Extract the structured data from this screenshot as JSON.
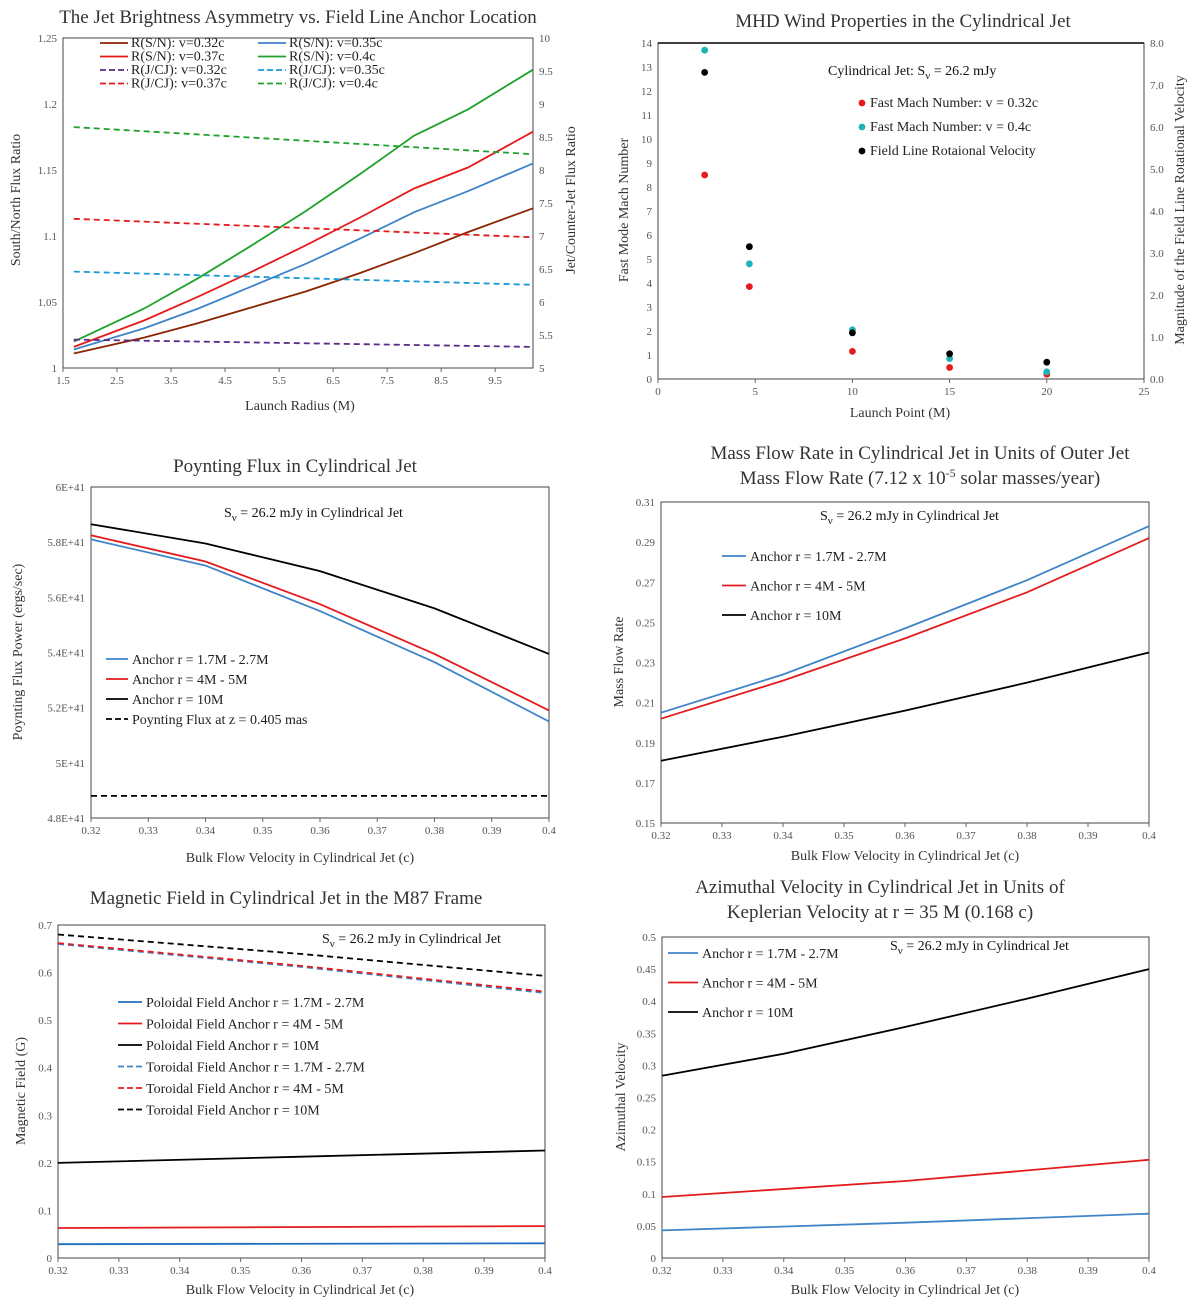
{
  "chart_data": [
    {
      "id": "jet_asymmetry",
      "type": "line",
      "title": "The Jet Brightness Asymmetry vs. Field Line Anchor Location",
      "xlabel": "Launch Radius (M)",
      "ylabel": "South/North Flux Ratio",
      "y2label": "Jet/Counter-Jet Flux Ratio",
      "xlim": [
        1.5,
        10.2
      ],
      "ylim": [
        1,
        1.25
      ],
      "y2lim": [
        5,
        10
      ],
      "xticks": [
        "1.5",
        "2.5",
        "3.5",
        "4.5",
        "5.5",
        "6.5",
        "7.5",
        "8.5",
        "9.5"
      ],
      "yticks": [
        "1",
        "1.05",
        "1.1",
        "1.15",
        "1.2",
        "1.25"
      ],
      "y2ticks": [
        "5",
        "5.5",
        "6",
        "6.5",
        "7",
        "7.5",
        "8",
        "8.5",
        "9",
        "9.5",
        "10"
      ],
      "series": [
        {
          "name": "R(S/N): v=0.32c",
          "color": "#8b2500",
          "dash": false,
          "axis": "y",
          "x": [
            1.7,
            3,
            4,
            5,
            6,
            7,
            8,
            9,
            10.2
          ],
          "y": [
            1.011,
            1.023,
            1.034,
            1.046,
            1.058,
            1.072,
            1.087,
            1.103,
            1.121
          ]
        },
        {
          "name": "R(S/N): v=0.35c",
          "color": "#3f84c8",
          "dash": false,
          "axis": "y",
          "x": [
            1.7,
            3,
            4,
            5,
            6,
            7,
            8,
            9,
            10.2
          ],
          "y": [
            1.014,
            1.03,
            1.045,
            1.062,
            1.079,
            1.098,
            1.118,
            1.134,
            1.155
          ]
        },
        {
          "name": "R(S/N): v=0.37c",
          "color": "#e41a1c",
          "dash": false,
          "axis": "y",
          "x": [
            1.7,
            3,
            4,
            5,
            6,
            7,
            8,
            9,
            10.2
          ],
          "y": [
            1.016,
            1.036,
            1.054,
            1.073,
            1.093,
            1.114,
            1.136,
            1.152,
            1.179
          ]
        },
        {
          "name": "R(S/N): v=0.4c",
          "color": "#1fa22b",
          "dash": false,
          "axis": "y",
          "x": [
            1.7,
            3,
            4,
            5,
            6,
            7,
            8,
            9,
            10.2
          ],
          "y": [
            1.02,
            1.045,
            1.068,
            1.093,
            1.119,
            1.147,
            1.176,
            1.196,
            1.226
          ]
        },
        {
          "name": "R(J/CJ): v=0.32c",
          "color": "#5b2a86",
          "dash": true,
          "axis": "y2",
          "x": [
            1.7,
            10.2
          ],
          "y": [
            5.43,
            5.32
          ]
        },
        {
          "name": "R(J/CJ): v=0.35c",
          "color": "#1b9ad6",
          "dash": true,
          "axis": "y2",
          "x": [
            1.7,
            10.2
          ],
          "y": [
            6.46,
            6.26
          ]
        },
        {
          "name": "R(J/CJ): v=0.37c",
          "color": "#e41a1c",
          "dash": true,
          "axis": "y2",
          "x": [
            1.7,
            10.2
          ],
          "y": [
            7.26,
            6.98
          ]
        },
        {
          "name": "R(J/CJ): v=0.4c",
          "color": "#1fa22b",
          "dash": true,
          "axis": "y2",
          "x": [
            1.7,
            10.2
          ],
          "y": [
            8.65,
            8.24
          ]
        }
      ]
    },
    {
      "id": "mhd_wind",
      "type": "scatter",
      "title": "MHD Wind Properties in the Cylindrical Jet",
      "xlabel": "Launch Point (M)",
      "ylabel": "Fast Mode Mach Number",
      "y2label": "Magnitude of the Field Line Rotational Velocity",
      "annotation_prefix": "Cylindrical Jet: S",
      "annotation_sub": "ν",
      "annotation_suffix": " = 26.2 mJy",
      "xlim": [
        0,
        25
      ],
      "ylim": [
        0,
        14
      ],
      "y2lim": [
        0,
        8
      ],
      "xticks": [
        "0",
        "5",
        "10",
        "15",
        "20",
        "25"
      ],
      "yticks": [
        "0",
        "1",
        "2",
        "3",
        "4",
        "5",
        "6",
        "7",
        "8",
        "9",
        "10",
        "11",
        "12",
        "13",
        "14"
      ],
      "y2ticks": [
        "0.0",
        "1.0",
        "2.0",
        "3.0",
        "4.0",
        "5.0",
        "6.0",
        "7.0",
        "8.0"
      ],
      "series": [
        {
          "name": "Fast Mach Number: v = 0.32c",
          "color": "#e41a1c",
          "axis": "y",
          "x": [
            2.4,
            4.7,
            10,
            15,
            20
          ],
          "y": [
            8.5,
            3.85,
            1.15,
            0.48,
            0.2
          ]
        },
        {
          "name": "Fast Mach Number: v = 0.4c",
          "color": "#1fb3b3",
          "axis": "y",
          "x": [
            2.4,
            4.7,
            10,
            15,
            20
          ],
          "y": [
            13.7,
            4.8,
            2.05,
            0.85,
            0.3
          ]
        },
        {
          "name": "Field Line Rotaional Velocity",
          "color": "#000000",
          "axis": "y2",
          "x": [
            2.4,
            4.7,
            10,
            15,
            20
          ],
          "y": [
            7.3,
            3.15,
            1.1,
            0.6,
            0.4
          ]
        }
      ]
    },
    {
      "id": "poynting",
      "type": "line",
      "title": "Poynting Flux in Cylindrical Jet",
      "xlabel": "Bulk Flow Velocity in Cylindrical Jet (c)",
      "ylabel": "Poynting Flux Power (ergs/sec)",
      "annotation_prefix": "S",
      "annotation_sub": "ν",
      "annotation_suffix": " = 26.2 mJy in Cylindrical Jet",
      "xlim": [
        0.32,
        0.4
      ],
      "ylim": [
        4.8,
        6.0
      ],
      "xticks": [
        "0.32",
        "0.33",
        "0.34",
        "0.35",
        "0.36",
        "0.37",
        "0.38",
        "0.39",
        "0.4"
      ],
      "yticks": [
        "4.8E+41",
        "5E+41",
        "5.2E+41",
        "5.4E+41",
        "5.6E+41",
        "5.8E+41",
        "6E+41"
      ],
      "series": [
        {
          "name": "Anchor r = 1.7M - 2.7M",
          "color": "#3f84c8",
          "dash": false,
          "x": [
            0.32,
            0.34,
            0.36,
            0.38,
            0.4
          ],
          "y": [
            5.81,
            5.715,
            5.55,
            5.365,
            5.15
          ]
        },
        {
          "name": "Anchor r = 4M - 5M",
          "color": "#e41a1c",
          "dash": false,
          "x": [
            0.32,
            0.34,
            0.36,
            0.38,
            0.4
          ],
          "y": [
            5.825,
            5.73,
            5.575,
            5.395,
            5.19
          ]
        },
        {
          "name": "Anchor r = 10M",
          "color": "#000000",
          "dash": false,
          "x": [
            0.32,
            0.34,
            0.36,
            0.38,
            0.4
          ],
          "y": [
            5.865,
            5.795,
            5.695,
            5.56,
            5.395
          ]
        },
        {
          "name": "Poynting Flux at z = 0.405 mas",
          "color": "#000000",
          "dash": true,
          "x": [
            0.32,
            0.4
          ],
          "y": [
            4.88,
            4.88
          ]
        }
      ]
    },
    {
      "id": "mass_flow",
      "type": "line",
      "title_line1": "Mass Flow Rate in Cylindrical Jet in Units of Outer Jet",
      "title_line2_prefix": "Mass Flow Rate (7.12 x 10",
      "title_line2_sup": "-5",
      "title_line2_suffix": " solar masses/year)",
      "xlabel": "Bulk Flow Velocity in Cylindrical Jet (c)",
      "ylabel": "Mass Flow Rate",
      "annotation_prefix": "S",
      "annotation_sub": "ν",
      "annotation_suffix": " = 26.2 mJy in Cylindrical Jet",
      "xlim": [
        0.32,
        0.4
      ],
      "ylim": [
        0.15,
        0.31
      ],
      "xticks": [
        "0.32",
        "0.33",
        "0.34",
        "0.35",
        "0.36",
        "0.37",
        "0.38",
        "0.39",
        "0.4"
      ],
      "yticks": [
        "0.15",
        "0.17",
        "0.19",
        "0.21",
        "0.23",
        "0.25",
        "0.27",
        "0.29",
        "0.31"
      ],
      "series": [
        {
          "name": "Anchor r = 1.7M - 2.7M",
          "color": "#3f84c8",
          "dash": false,
          "x": [
            0.32,
            0.34,
            0.36,
            0.38,
            0.4
          ],
          "y": [
            0.205,
            0.224,
            0.247,
            0.271,
            0.298
          ]
        },
        {
          "name": "Anchor r = 4M - 5M",
          "color": "#e41a1c",
          "dash": false,
          "x": [
            0.32,
            0.34,
            0.36,
            0.38,
            0.4
          ],
          "y": [
            0.202,
            0.221,
            0.242,
            0.265,
            0.292
          ]
        },
        {
          "name": "Anchor r = 10M",
          "color": "#000000",
          "dash": false,
          "x": [
            0.32,
            0.34,
            0.36,
            0.38,
            0.4
          ],
          "y": [
            0.181,
            0.193,
            0.206,
            0.22,
            0.235
          ]
        }
      ]
    },
    {
      "id": "magnetic_field",
      "type": "line",
      "title": "Magnetic Field in Cylindrical Jet in the M87 Frame",
      "xlabel": "Bulk Flow Velocity in Cylindrical Jet (c)",
      "ylabel": "Magnetic Field (G)",
      "annotation_prefix": "S",
      "annotation_sub": "ν",
      "annotation_suffix": " = 26.2 mJy in Cylindrical Jet",
      "xlim": [
        0.32,
        0.4
      ],
      "ylim": [
        0,
        0.7
      ],
      "xticks": [
        "0.32",
        "0.33",
        "0.34",
        "0.35",
        "0.36",
        "0.37",
        "0.38",
        "0.39",
        "0.4"
      ],
      "yticks": [
        "0",
        "0.1",
        "0.2",
        "0.3",
        "0.4",
        "0.5",
        "0.6",
        "0.7"
      ],
      "series": [
        {
          "name": "Poloidal Field Anchor r = 1.7M - 2.7M",
          "color": "#1f6fc0",
          "dash": false,
          "x": [
            0.32,
            0.4
          ],
          "y": [
            0.029,
            0.031
          ]
        },
        {
          "name": "Poloidal Field Anchor r = 4M - 5M",
          "color": "#e41a1c",
          "dash": false,
          "x": [
            0.32,
            0.4
          ],
          "y": [
            0.063,
            0.067
          ]
        },
        {
          "name": "Poloidal Field Anchor r = 10M",
          "color": "#000000",
          "dash": false,
          "x": [
            0.32,
            0.36,
            0.4
          ],
          "y": [
            0.2,
            0.213,
            0.226
          ]
        },
        {
          "name": "Toroidal Field Anchor r = 1.7M - 2.7M",
          "color": "#3f84c8",
          "dash": true,
          "x": [
            0.32,
            0.36,
            0.4
          ],
          "y": [
            0.66,
            0.612,
            0.557
          ]
        },
        {
          "name": "Toroidal Field Anchor r = 4M - 5M",
          "color": "#e41a1c",
          "dash": true,
          "x": [
            0.32,
            0.36,
            0.4
          ],
          "y": [
            0.662,
            0.614,
            0.56
          ]
        },
        {
          "name": "Toroidal Field Anchor r = 10M",
          "color": "#000000",
          "dash": true,
          "x": [
            0.32,
            0.36,
            0.4
          ],
          "y": [
            0.68,
            0.639,
            0.593
          ]
        }
      ]
    },
    {
      "id": "azimuthal_velocity",
      "type": "line",
      "title_line1": "Azimuthal Velocity in Cylindrical Jet in Units of",
      "title_line2": "Keplerian Velocity at r = 35 M (0.168 c)",
      "xlabel": "Bulk Flow Velocity in Cylindrical Jet (c)",
      "ylabel": "Azimuthal Velocity",
      "annotation_prefix": "S",
      "annotation_sub": "ν",
      "annotation_suffix": " = 26.2 mJy in Cylindrical Jet",
      "xlim": [
        0.32,
        0.4
      ],
      "ylim": [
        0,
        0.5
      ],
      "xticks": [
        "0.32",
        "0.33",
        "0.34",
        "0.35",
        "0.36",
        "0.37",
        "0.38",
        "0.39",
        "0.4"
      ],
      "yticks": [
        "0",
        "0.05",
        "0.1",
        "0.15",
        "0.2",
        "0.25",
        "0.3",
        "0.35",
        "0.4",
        "0.45",
        "0.5"
      ],
      "series": [
        {
          "name": "Anchor r = 1.7M - 2.7M",
          "color": "#3f84c8",
          "dash": false,
          "x": [
            0.32,
            0.36,
            0.4
          ],
          "y": [
            0.043,
            0.055,
            0.069
          ]
        },
        {
          "name": "Anchor r = 4M - 5M",
          "color": "#e41a1c",
          "dash": false,
          "x": [
            0.32,
            0.36,
            0.4
          ],
          "y": [
            0.095,
            0.12,
            0.153
          ]
        },
        {
          "name": "Anchor r = 10M",
          "color": "#000000",
          "dash": false,
          "x": [
            0.32,
            0.34,
            0.36,
            0.38,
            0.4
          ],
          "y": [
            0.284,
            0.318,
            0.36,
            0.404,
            0.45
          ]
        }
      ]
    }
  ]
}
